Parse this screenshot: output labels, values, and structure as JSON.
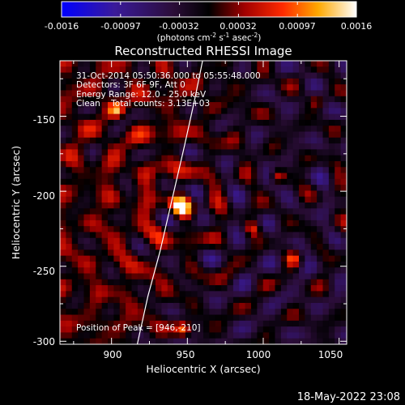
{
  "chart_data": {
    "type": "heatmap",
    "title": "Reconstructed RHESSI Image",
    "xlabel": "Heliocentric X (arcsec)",
    "ylabel": "Heliocentric Y (arcsec)",
    "xlim": [
      866,
      1055
    ],
    "ylim": [
      -302,
      -113
    ],
    "xticks": [
      900,
      950,
      1000,
      1050
    ],
    "yticks": [
      -150,
      -200,
      -250,
      -300
    ],
    "colorbar": {
      "ticks": [
        "-0.0016",
        "-0.00097",
        "-0.00032",
        "0.00032",
        "0.00097",
        "0.0016"
      ],
      "range": [
        -0.0016,
        0.0016
      ],
      "label_main": "(photons cm",
      "sup1": "-2",
      "mid": " s",
      "sup2": "-1",
      "mid2": " asec",
      "sup3": "-2",
      "tail": ")"
    },
    "info": [
      "31-Oct-2014 05:50:36.000 to 05:55:48.000",
      "Detectors: 3F 6F 9F, Att 0",
      "Energy Range: 12.0 - 25.0 keV",
      "Clean    Total counts: 3.13E+03"
    ],
    "peak": {
      "x": 946,
      "y": -210,
      "label": "Position of Peak = [946,-210]"
    },
    "limb_points": [
      [
        917,
        -302
      ],
      [
        924,
        -270
      ],
      [
        932,
        -240
      ],
      [
        940,
        -205
      ],
      [
        948,
        -170
      ],
      [
        955,
        -138
      ],
      [
        960,
        -113
      ]
    ],
    "secondary_sources": [
      {
        "x": 947,
        "y": -292,
        "value": 0.001
      },
      {
        "x": 903,
        "y": -146,
        "value": 0.0009
      },
      {
        "x": 1010,
        "y": -190,
        "value": 0.0008
      },
      {
        "x": 1020,
        "y": -245,
        "value": 0.0008
      },
      {
        "x": 993,
        "y": -225,
        "value": 0.0007
      },
      {
        "x": 1035,
        "y": -140,
        "value": 0.0006
      }
    ],
    "footer": "18-May-2022 23:08"
  }
}
